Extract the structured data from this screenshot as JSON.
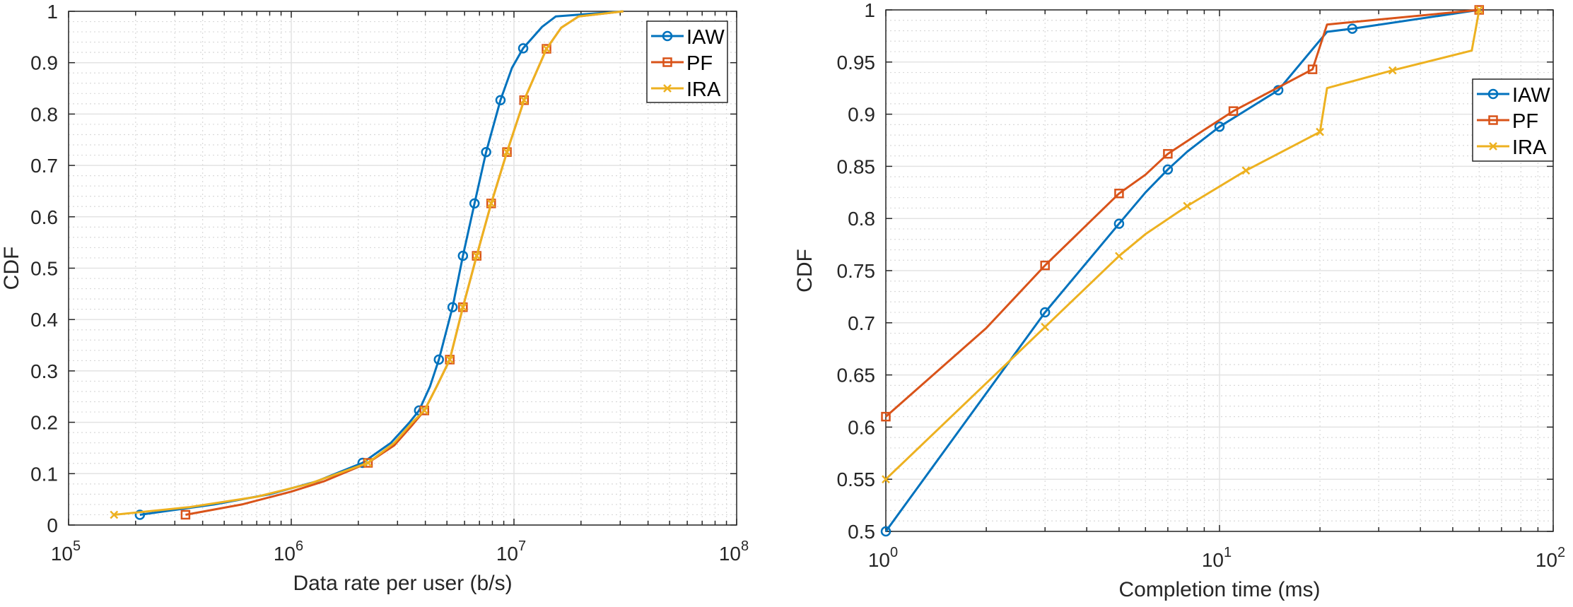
{
  "chart_data": [
    {
      "type": "line",
      "xscale": "log",
      "xlabel": "Data rate per user (b/s)",
      "ylabel": "CDF",
      "xlim": [
        100000,
        100000000
      ],
      "ylim": [
        0,
        1
      ],
      "grid": true,
      "minor_grid": true,
      "legend_position": "top-right",
      "x_ticks": [
        {
          "base": "10",
          "exp": "5",
          "value": 100000
        },
        {
          "base": "10",
          "exp": "6",
          "value": 1000000
        },
        {
          "base": "10",
          "exp": "7",
          "value": 10000000
        },
        {
          "base": "10",
          "exp": "8",
          "value": 100000000
        }
      ],
      "y_ticks": [
        "0",
        "0.1",
        "0.2",
        "0.3",
        "0.4",
        "0.5",
        "0.6",
        "0.7",
        "0.8",
        "0.9",
        "1"
      ],
      "y_tick_values": [
        0,
        0.1,
        0.2,
        0.3,
        0.4,
        0.5,
        0.6,
        0.7,
        0.8,
        0.9,
        1
      ],
      "series": [
        {
          "name": "IAW",
          "color": "#0072BD",
          "marker": "circle",
          "x": [
            209000,
            450000,
            800000,
            1300000,
            2090000,
            2800000,
            3400000,
            3750000,
            4200000,
            4600000,
            5300000,
            5900000,
            6650000,
            7500000,
            8700000,
            9800000,
            11000000,
            13400000,
            15400000,
            31000000
          ],
          "y": [
            0.02,
            0.04,
            0.06,
            0.085,
            0.121,
            0.16,
            0.2,
            0.223,
            0.27,
            0.322,
            0.424,
            0.524,
            0.626,
            0.726,
            0.827,
            0.89,
            0.928,
            0.97,
            0.99,
            1.0
          ],
          "marker_indices": [
            0,
            4,
            7,
            9,
            10,
            11,
            12,
            13,
            14,
            16
          ]
        },
        {
          "name": "PF",
          "color": "#D95319",
          "marker": "square",
          "x": [
            335000,
            600000,
            1000000,
            1400000,
            2210000,
            2900000,
            3500000,
            3960000,
            4500000,
            5150000,
            5900000,
            6800000,
            7900000,
            9300000,
            11100000,
            14000000,
            16300000,
            19500000,
            31000000
          ],
          "y": [
            0.02,
            0.04,
            0.065,
            0.085,
            0.121,
            0.155,
            0.195,
            0.223,
            0.27,
            0.322,
            0.424,
            0.524,
            0.626,
            0.726,
            0.827,
            0.927,
            0.968,
            0.99,
            1.0
          ],
          "marker_indices": [
            0,
            4,
            7,
            9,
            10,
            11,
            12,
            13,
            14,
            15
          ]
        },
        {
          "name": "IRA",
          "color": "#EDB120",
          "marker": "x",
          "x": [
            160000,
            350000,
            700000,
            1200000,
            2210000,
            2900000,
            3500000,
            3960000,
            4500000,
            5150000,
            5900000,
            6800000,
            7900000,
            9300000,
            11100000,
            14000000,
            16300000,
            19500000,
            31000000
          ],
          "y": [
            0.02,
            0.035,
            0.055,
            0.08,
            0.121,
            0.16,
            0.2,
            0.223,
            0.27,
            0.322,
            0.424,
            0.524,
            0.626,
            0.726,
            0.827,
            0.927,
            0.968,
            0.99,
            1.0
          ],
          "marker_indices": [
            0,
            4,
            7,
            9,
            10,
            11,
            12,
            13,
            14,
            15
          ]
        }
      ]
    },
    {
      "type": "line",
      "xscale": "log",
      "xlabel": "Completion time (ms)",
      "ylabel": "CDF",
      "xlim": [
        1,
        100
      ],
      "ylim": [
        0.5,
        1
      ],
      "grid": true,
      "minor_grid": true,
      "legend_position": "right",
      "x_ticks": [
        {
          "base": "10",
          "exp": "0",
          "value": 1
        },
        {
          "base": "10",
          "exp": "1",
          "value": 10
        },
        {
          "base": "10",
          "exp": "2",
          "value": 100
        }
      ],
      "y_ticks": [
        "0.5",
        "0.55",
        "0.6",
        "0.65",
        "0.7",
        "0.75",
        "0.8",
        "0.85",
        "0.9",
        "0.95",
        "1"
      ],
      "y_tick_values": [
        0.5,
        0.55,
        0.6,
        0.65,
        0.7,
        0.75,
        0.8,
        0.85,
        0.9,
        0.95,
        1
      ],
      "series": [
        {
          "name": "IAW",
          "color": "#0072BD",
          "marker": "circle",
          "x": [
            1,
            3,
            5,
            6,
            7,
            8,
            10,
            15,
            21,
            25,
            60
          ],
          "y": [
            0.5,
            0.71,
            0.795,
            0.825,
            0.847,
            0.864,
            0.888,
            0.923,
            0.979,
            0.982,
            1.0
          ],
          "marker_indices": [
            0,
            1,
            2,
            4,
            6,
            7,
            9
          ]
        },
        {
          "name": "PF",
          "color": "#D95319",
          "marker": "square",
          "x": [
            1,
            2,
            3,
            5,
            6,
            7,
            9,
            11,
            19,
            21,
            60
          ],
          "y": [
            0.61,
            0.695,
            0.755,
            0.824,
            0.842,
            0.862,
            0.885,
            0.903,
            0.943,
            0.986,
            1.0
          ],
          "marker_indices": [
            0,
            2,
            3,
            5,
            7,
            8,
            10
          ]
        },
        {
          "name": "IRA",
          "color": "#EDB120",
          "marker": "x",
          "x": [
            1,
            3,
            5,
            6,
            8,
            12,
            20,
            21,
            33,
            57,
            60
          ],
          "y": [
            0.55,
            0.696,
            0.764,
            0.785,
            0.812,
            0.846,
            0.883,
            0.925,
            0.942,
            0.961,
            1.0
          ],
          "marker_indices": [
            0,
            1,
            2,
            4,
            5,
            6,
            8,
            10
          ]
        }
      ]
    }
  ]
}
